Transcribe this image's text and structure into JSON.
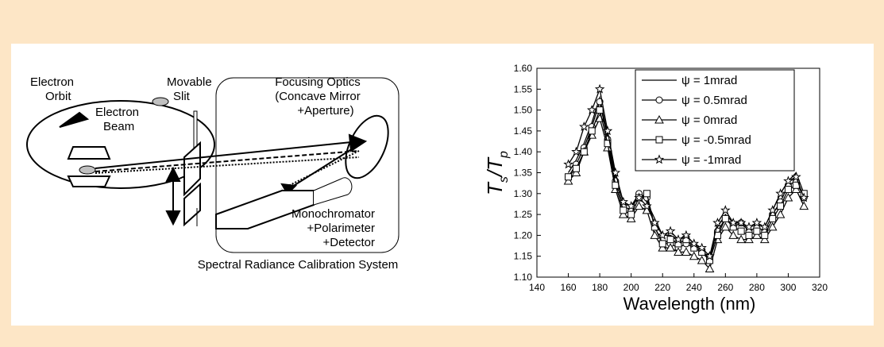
{
  "diagram": {
    "electron_orbit": [
      "Electron",
      "Orbit"
    ],
    "electron_beam": [
      "Electron",
      "Beam"
    ],
    "movable_slit": [
      "Movable",
      "Slit"
    ],
    "focusing_optics": [
      "Focusing Optics",
      "(Concave Mirror",
      "+Aperture)"
    ],
    "monochromator": [
      "Monochromator",
      "+Polarimeter",
      "+Detector"
    ],
    "system_label": "Spectral Radiance Calibration System"
  },
  "chart_data": {
    "type": "line",
    "x_label": "Wavelength (nm)",
    "y_label_parts": [
      "T",
      "s",
      "/T",
      "p"
    ],
    "x": [
      160,
      165,
      170,
      175,
      180,
      185,
      190,
      195,
      200,
      205,
      210,
      215,
      220,
      225,
      230,
      235,
      240,
      245,
      250,
      255,
      260,
      265,
      270,
      275,
      280,
      285,
      290,
      295,
      300,
      305,
      310
    ],
    "series": [
      {
        "name": "ψ = 1mrad",
        "color": "#000000",
        "marker": "none",
        "values": [
          1.35,
          1.38,
          1.42,
          1.47,
          1.53,
          1.44,
          1.34,
          1.28,
          1.27,
          1.3,
          1.28,
          1.24,
          1.2,
          1.2,
          1.19,
          1.2,
          1.18,
          1.16,
          1.14,
          1.22,
          1.25,
          1.23,
          1.23,
          1.22,
          1.23,
          1.22,
          1.26,
          1.3,
          1.33,
          1.35,
          1.3
        ]
      },
      {
        "name": "ψ = 0.5mrad",
        "color": "#000000",
        "marker": "circle",
        "values": [
          1.34,
          1.37,
          1.41,
          1.46,
          1.52,
          1.43,
          1.33,
          1.27,
          1.26,
          1.3,
          1.29,
          1.22,
          1.18,
          1.18,
          1.17,
          1.18,
          1.17,
          1.16,
          1.15,
          1.21,
          1.24,
          1.22,
          1.23,
          1.21,
          1.22,
          1.21,
          1.25,
          1.28,
          1.32,
          1.33,
          1.29
        ]
      },
      {
        "name": "ψ = 0mrad",
        "color": "#000000",
        "marker": "triangle",
        "values": [
          1.33,
          1.35,
          1.4,
          1.44,
          1.48,
          1.41,
          1.31,
          1.25,
          1.24,
          1.27,
          1.26,
          1.2,
          1.17,
          1.17,
          1.16,
          1.16,
          1.15,
          1.14,
          1.12,
          1.19,
          1.22,
          1.2,
          1.19,
          1.19,
          1.2,
          1.19,
          1.22,
          1.25,
          1.29,
          1.31,
          1.27
        ]
      },
      {
        "name": "ψ = -0.5mrad",
        "color": "#000000",
        "marker": "square",
        "values": [
          1.34,
          1.36,
          1.4,
          1.45,
          1.5,
          1.42,
          1.32,
          1.26,
          1.25,
          1.29,
          1.3,
          1.22,
          1.18,
          1.19,
          1.18,
          1.19,
          1.17,
          1.16,
          1.14,
          1.2,
          1.24,
          1.22,
          1.21,
          1.2,
          1.21,
          1.2,
          1.24,
          1.27,
          1.31,
          1.32,
          1.3
        ]
      },
      {
        "name": "ψ = -1mrad",
        "color": "#000000",
        "marker": "star",
        "values": [
          1.37,
          1.4,
          1.46,
          1.5,
          1.55,
          1.45,
          1.35,
          1.28,
          1.27,
          1.29,
          1.27,
          1.23,
          1.2,
          1.21,
          1.19,
          1.2,
          1.18,
          1.17,
          1.15,
          1.23,
          1.26,
          1.23,
          1.23,
          1.22,
          1.23,
          1.22,
          1.26,
          1.3,
          1.33,
          1.34,
          1.29
        ]
      }
    ],
    "xlim": [
      140,
      320
    ],
    "xticks": [
      140,
      160,
      180,
      200,
      220,
      240,
      260,
      280,
      300,
      320
    ],
    "ylim": [
      1.1,
      1.6
    ],
    "yticks": [
      {
        "value": 1.1,
        "label": "1.10"
      },
      {
        "value": 1.15,
        "label": "1.15"
      },
      {
        "value": 1.2,
        "label": "1.20"
      },
      {
        "value": 1.25,
        "label": "1.25"
      },
      {
        "value": 1.3,
        "label": "1.30"
      },
      {
        "value": 1.35,
        "label": "1.35"
      },
      {
        "value": 1.4,
        "label": "1.40"
      },
      {
        "value": 1.45,
        "label": "1.45"
      },
      {
        "value": 1.5,
        "label": "1.50"
      },
      {
        "value": 1.55,
        "label": "1.55"
      },
      {
        "value": 1.6,
        "label": "1.60"
      }
    ],
    "legend": "upper right",
    "grid": false
  }
}
